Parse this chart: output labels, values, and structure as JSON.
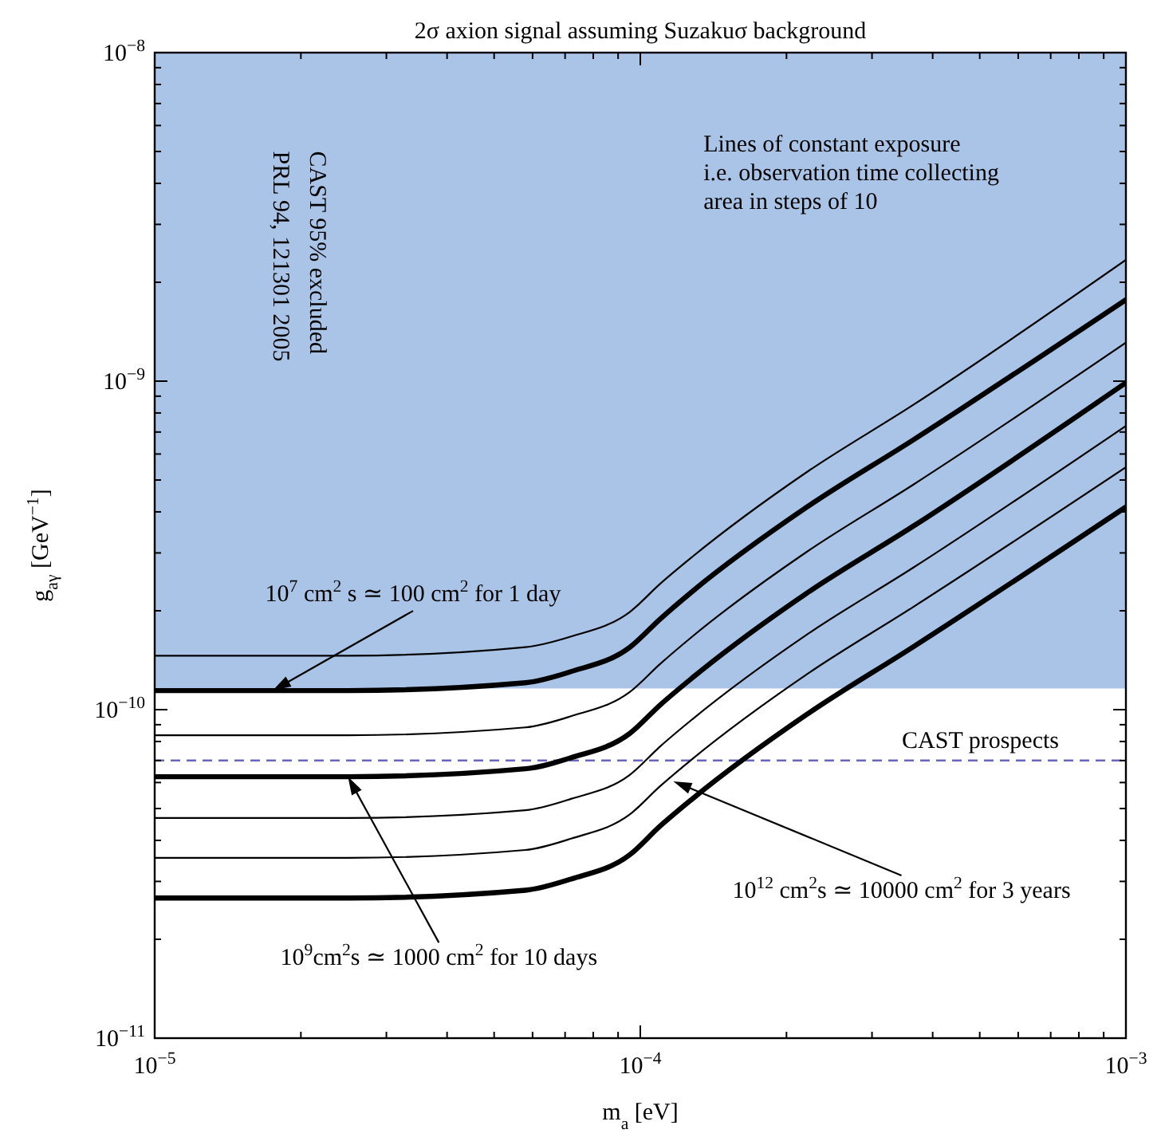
{
  "chart_data": {
    "type": "line",
    "title": "2σ axion signal assuming Suzakuσ background",
    "xlabel": "m$_{a}$ [eV]",
    "ylabel": "g$_{aγ}$ [GeV$^{−1}$]",
    "log": "xy",
    "grid": false,
    "marker": "none",
    "line_style": "solid",
    "x": [
      1e-05,
      2.5e-05,
      5.8e-05,
      7.2e-05,
      9.5e-05,
      0.00011,
      0.000128,
      0.00022,
      0.000364,
      0.001
    ],
    "xlim": [
      1e-05,
      0.001
    ],
    "xticks": [
      {
        "value": 1e-05,
        "label": "10$^{−5}$"
      },
      {
        "value": 2e-05,
        "label": null
      },
      {
        "value": 3e-05,
        "label": null
      },
      {
        "value": 4e-05,
        "label": null
      },
      {
        "value": 5e-05,
        "label": null
      },
      {
        "value": 6e-05,
        "label": null
      },
      {
        "value": 7e-05,
        "label": null
      },
      {
        "value": 8e-05,
        "label": null
      },
      {
        "value": 9e-05,
        "label": null
      },
      {
        "value": 0.0001,
        "label": "10$^{−4}$"
      },
      {
        "value": 0.0002,
        "label": null
      },
      {
        "value": 0.0003,
        "label": null
      },
      {
        "value": 0.0004,
        "label": null
      },
      {
        "value": 0.0005,
        "label": null
      },
      {
        "value": 0.0006,
        "label": null
      },
      {
        "value": 0.0007,
        "label": null
      },
      {
        "value": 0.0008,
        "label": null
      },
      {
        "value": 0.0009,
        "label": null
      },
      {
        "value": 0.001,
        "label": "10$^{−3}$"
      }
    ],
    "ylim": [
      1e-11,
      1e-08
    ],
    "yticks": [
      {
        "value": 1e-11,
        "label": "10$^{−11}$"
      },
      {
        "value": 2e-11,
        "label": null
      },
      {
        "value": 3e-11,
        "label": null
      },
      {
        "value": 4e-11,
        "label": null
      },
      {
        "value": 5e-11,
        "label": null
      },
      {
        "value": 6e-11,
        "label": null
      },
      {
        "value": 7e-11,
        "label": null
      },
      {
        "value": 8e-11,
        "label": null
      },
      {
        "value": 9e-11,
        "label": null
      },
      {
        "value": 1e-10,
        "label": "10$^{−10}$"
      },
      {
        "value": 2e-10,
        "label": null
      },
      {
        "value": 3e-10,
        "label": null
      },
      {
        "value": 4e-10,
        "label": null
      },
      {
        "value": 5e-10,
        "label": null
      },
      {
        "value": 6e-10,
        "label": null
      },
      {
        "value": 7e-10,
        "label": null
      },
      {
        "value": 8e-10,
        "label": null
      },
      {
        "value": 9e-10,
        "label": null
      },
      {
        "value": 1e-09,
        "label": "10$^{−9}$"
      },
      {
        "value": 2e-09,
        "label": null
      },
      {
        "value": 3e-09,
        "label": null
      },
      {
        "value": 4e-09,
        "label": null
      },
      {
        "value": 5e-09,
        "label": null
      },
      {
        "value": 6e-09,
        "label": null
      },
      {
        "value": 7e-09,
        "label": null
      },
      {
        "value": 8e-09,
        "label": null
      },
      {
        "value": 9e-09,
        "label": null
      },
      {
        "value": 1e-08,
        "label": "10$^{−8}$"
      }
    ],
    "series": [
      {
        "color": "#000000",
        "values": [
          1.46e-10,
          1.46e-10,
          1.55e-10,
          1.67e-10,
          1.98e-10,
          2.42e-10,
          2.92e-10,
          5.28e-10,
          8.45e-10,
          2.34e-09
        ]
      },
      {
        "color": "#000000",
        "values": [
          1.143e-10,
          1.143e-10,
          1.208e-10,
          1.306e-10,
          1.545e-10,
          1.89e-10,
          2.29e-10,
          4.13e-10,
          6.61e-10,
          1.77e-09
        ]
      },
      {
        "color": "#000000",
        "values": [
          8.36e-11,
          8.36e-11,
          8.83e-11,
          9.55e-11,
          1.13e-10,
          1.38e-10,
          1.67e-10,
          3.02e-10,
          4.83e-10,
          1.31e-09
        ]
      },
      {
        "color": "#000000",
        "values": [
          6.25e-11,
          6.25e-11,
          6.61e-11,
          7.14e-11,
          8.45e-11,
          1.035e-10,
          1.25e-10,
          2.26e-10,
          3.61e-10,
          9.89e-10
        ]
      },
      {
        "color": "#000000",
        "values": [
          4.68e-11,
          4.68e-11,
          4.94e-11,
          5.35e-11,
          6.32e-11,
          7.74e-11,
          9.35e-11,
          1.69e-10,
          2.7e-10,
          7.31e-10
        ]
      },
      {
        "color": "#000000",
        "values": [
          3.54e-11,
          3.54e-11,
          3.74e-11,
          4.05e-11,
          4.79e-11,
          5.86e-11,
          7.08e-11,
          1.28e-10,
          2.05e-10,
          5.47e-10
        ]
      },
      {
        "color": "#000000",
        "values": [
          2.67e-11,
          2.67e-11,
          2.82e-11,
          3.05e-11,
          3.61e-11,
          4.43e-11,
          5.35e-11,
          9.66e-11,
          1.55e-10,
          4.14e-10
        ]
      }
    ],
    "bands": [
      {
        "axis": "y",
        "from": 1.16e-10,
        "to": 1e-08,
        "color": "#a9c4e6",
        "label": "CAST 95% excluded\nPRL 94, 121301 2005"
      }
    ],
    "ref_lines": [
      {
        "axis": "y",
        "value": 7e-11,
        "label": "CAST prospects",
        "color": "#6666bb",
        "line_style": "dashed"
      }
    ],
    "annotations": [
      "Lines of constant exposure\ni.e. observation time collecting\narea in steps of 10",
      {
        "text": "10$^{7}$ cm$^{2}$ s ≃ 100 cm$^{2}$ for 1 day",
        "x": 1.75e-05,
        "y": 1.143e-10
      },
      {
        "text": "10$^{9}$cm$^{2}$s ≃ 1000 cm$^{2}$ for 10 days",
        "x": 2.5e-05,
        "y": 6.25e-11
      },
      {
        "text": "10$^{12}$ cm$^{2}$s ≃ 10000 cm$^{2}$ for 3 years",
        "x": 0.000117,
        "y": 6.05e-11
      }
    ]
  }
}
